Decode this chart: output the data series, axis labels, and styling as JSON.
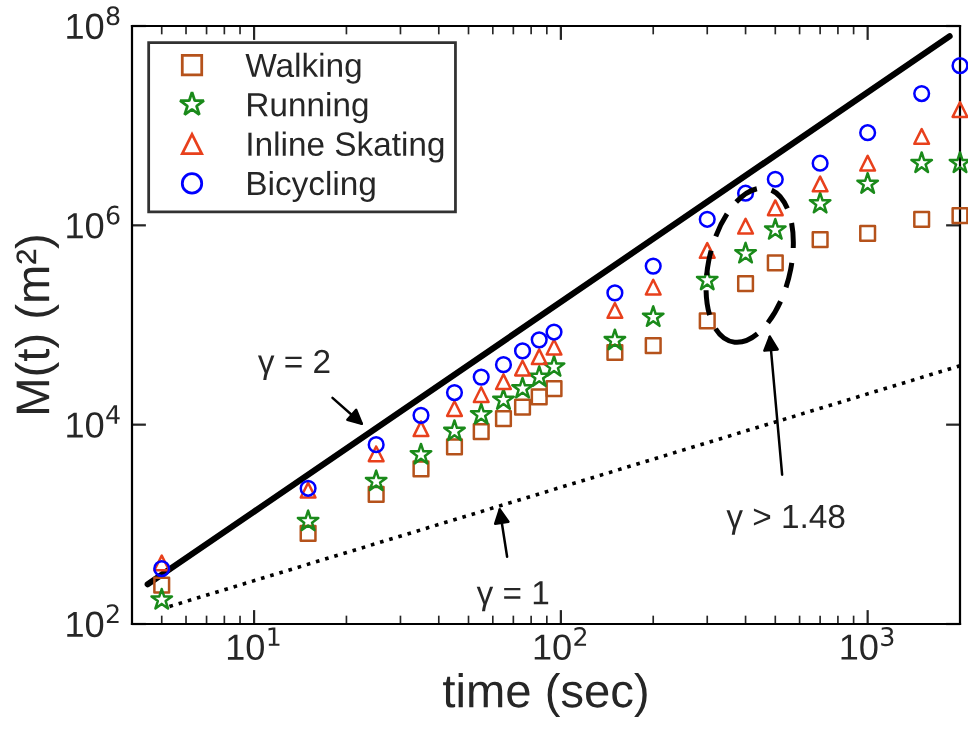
{
  "chart_data": {
    "type": "scatter",
    "xlabel": "time (sec)",
    "ylabel": "M(t) (m²)",
    "log": "xy",
    "legend": "top left",
    "grid": false,
    "xlim": [
      4,
      2000
    ],
    "ylim": [
      100,
      100000000
    ],
    "xticks": [
      {
        "value": 10,
        "label": "10$^{1}$"
      },
      {
        "value": 100,
        "label": "10$^{2}$"
      },
      {
        "value": 1000,
        "label": "10$^{3}$"
      }
    ],
    "yticks": [
      {
        "value": 100,
        "label": "10$^{2}$"
      },
      {
        "value": 10000,
        "label": "10$^{4}$"
      },
      {
        "value": 1000000,
        "label": "10$^{6}$"
      },
      {
        "value": 100000000,
        "label": "10$^{8}$"
      }
    ],
    "x": [
      5,
      15,
      25,
      35,
      45,
      55,
      65,
      75,
      85,
      95,
      150,
      200,
      300,
      400,
      500,
      700,
      1000,
      1500,
      2000
    ],
    "series": [
      {
        "name": "Walking",
        "color": "#b5521b",
        "marker": "square",
        "values": [
          245,
          810,
          2000,
          3600,
          6000,
          8500,
          11500,
          15000,
          19000,
          23000,
          53000,
          62000,
          110000,
          260000,
          420000,
          720000,
          830000,
          1150000,
          1250000
        ]
      },
      {
        "name": "Running",
        "color": "#1a8a1a",
        "marker": "star",
        "values": [
          175,
          1070,
          2700,
          5000,
          8600,
          12600,
          17700,
          23000,
          30000,
          38000,
          70000,
          120000,
          280000,
          520000,
          900000,
          1650000,
          2600000,
          4200000,
          4200000
        ]
      },
      {
        "name": "Inline Skating",
        "color": "#e8401c",
        "marker": "triangle",
        "values": [
          410,
          2200,
          5100,
          9100,
          14500,
          20000,
          27000,
          37000,
          48000,
          60000,
          140000,
          240000,
          560000,
          980000,
          1500000,
          2600000,
          4200000,
          7800000,
          14500000
        ]
      },
      {
        "name": "Bicycling",
        "color": "#0000ff",
        "marker": "circle",
        "values": [
          360,
          2300,
          6300,
          12400,
          21000,
          30000,
          40000,
          55000,
          71000,
          85000,
          210000,
          390000,
          1150000,
          2100000,
          2900000,
          4200000,
          8500000,
          21000000,
          40000000
        ]
      },
      {
        "type": "line",
        "color": "#000000",
        "line_style": "solid",
        "x": [
          4.5,
          1850
        ],
        "values": [
          250,
          79000000
        ]
      },
      {
        "type": "line",
        "color": "#000000",
        "line_style": "dotted",
        "x": [
          5.3,
          2000
        ],
        "values": [
          150,
          39000
        ]
      }
    ],
    "annotations": [
      {
        "text": "γ = 2",
        "x": 22.8,
        "y": 9800
      },
      {
        "text": "γ = 1",
        "x": 63,
        "y": 1500
      },
      "γ > 1.48"
    ]
  }
}
